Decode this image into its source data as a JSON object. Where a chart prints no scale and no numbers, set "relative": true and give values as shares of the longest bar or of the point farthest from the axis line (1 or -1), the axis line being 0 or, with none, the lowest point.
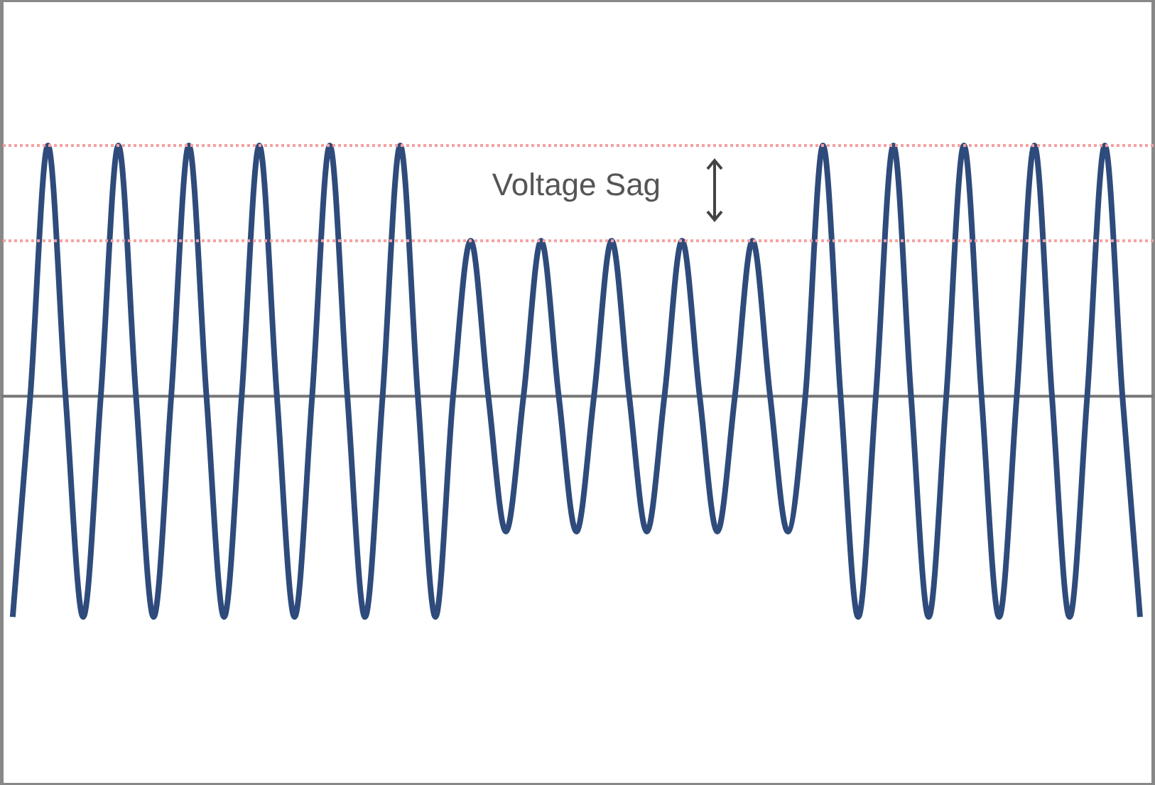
{
  "chart_data": {
    "type": "line",
    "relative": true,
    "categories": [
      null,
      null,
      null,
      null,
      null,
      null,
      null,
      null,
      null,
      null,
      null,
      null,
      null,
      null,
      null,
      null,
      null,
      null,
      null,
      null,
      null,
      null,
      null,
      null,
      null,
      null,
      null,
      null,
      null,
      null,
      null,
      null,
      null,
      null,
      null,
      null,
      null,
      null,
      null,
      null,
      null,
      null,
      null,
      null,
      null,
      null,
      null,
      null,
      null,
      null,
      null,
      null,
      null,
      null,
      null,
      null,
      null,
      null,
      null,
      null,
      null,
      null,
      null,
      null,
      null
    ],
    "series": [
      {
        "color": "#2f4b7c",
        "values": [
          -0.88,
          0,
          1,
          0,
          -0.88,
          0,
          1,
          0,
          -0.88,
          0,
          1,
          0,
          -0.88,
          0,
          1,
          0,
          -0.88,
          0,
          1,
          0,
          -0.88,
          0,
          1,
          0,
          -0.88,
          0,
          0.62,
          0,
          -0.54,
          0,
          0.62,
          0,
          -0.54,
          0,
          0.62,
          0,
          -0.54,
          0,
          0.62,
          0,
          -0.54,
          0,
          0.62,
          0,
          -0.54,
          0,
          1,
          0,
          -0.88,
          0,
          1,
          0,
          -0.88,
          0,
          1,
          0,
          -0.88,
          0,
          1,
          0,
          -0.88,
          0,
          1,
          0,
          -0.88
        ]
      }
    ],
    "ref_lines": [
      {
        "axis": "y",
        "value": 1,
        "color": "#f4a0a0",
        "line_style": "dotted"
      },
      {
        "axis": "y",
        "value": 0.62,
        "label": "Voltage Sag",
        "color": "#f4a0a0",
        "line_style": "dotted"
      }
    ],
    "marker": "none",
    "line_style": "solid"
  }
}
